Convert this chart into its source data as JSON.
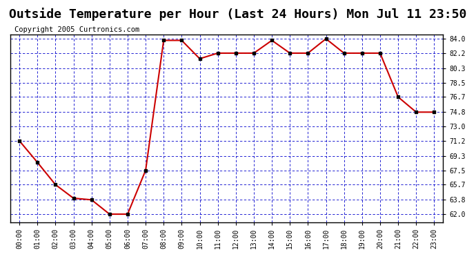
{
  "title": "Outside Temperature per Hour (Last 24 Hours) Mon Jul 11 23:50",
  "copyright": "Copyright 2005 Curtronics.com",
  "hours": [
    0,
    1,
    2,
    3,
    4,
    5,
    6,
    7,
    8,
    9,
    10,
    11,
    12,
    13,
    14,
    15,
    16,
    17,
    18,
    19,
    20,
    21,
    22,
    23
  ],
  "temps": [
    71.2,
    68.5,
    65.7,
    64.0,
    63.8,
    62.0,
    62.0,
    67.5,
    83.8,
    83.8,
    81.5,
    82.2,
    82.2,
    82.2,
    83.8,
    82.2,
    82.2,
    84.0,
    82.2,
    82.2,
    82.2,
    76.7,
    74.8,
    74.8
  ],
  "x_labels": [
    "00:00",
    "01:00",
    "02:00",
    "03:00",
    "04:00",
    "05:00",
    "06:00",
    "07:00",
    "08:00",
    "09:00",
    "10:00",
    "11:00",
    "12:00",
    "13:00",
    "14:00",
    "15:00",
    "16:00",
    "17:00",
    "18:00",
    "19:00",
    "20:00",
    "21:00",
    "22:00",
    "23:00"
  ],
  "y_ticks": [
    62.0,
    63.8,
    65.7,
    67.5,
    69.3,
    71.2,
    73.0,
    74.8,
    76.7,
    78.5,
    80.3,
    82.2,
    84.0
  ],
  "y_labels": [
    "62.0",
    "63.8",
    "65.7",
    "67.5",
    "69.3",
    "71.2",
    "73.0",
    "74.8",
    "76.7",
    "78.5",
    "80.3",
    "82.2",
    "84.0"
  ],
  "ylim_min": 61.0,
  "ylim_max": 84.5,
  "line_color": "#cc0000",
  "marker_color": "#000000",
  "bg_color": "#ffffff",
  "plot_bg_color": "#ffffff",
  "grid_color": "#0000cc",
  "title_fontsize": 13,
  "copyright_fontsize": 7.5
}
